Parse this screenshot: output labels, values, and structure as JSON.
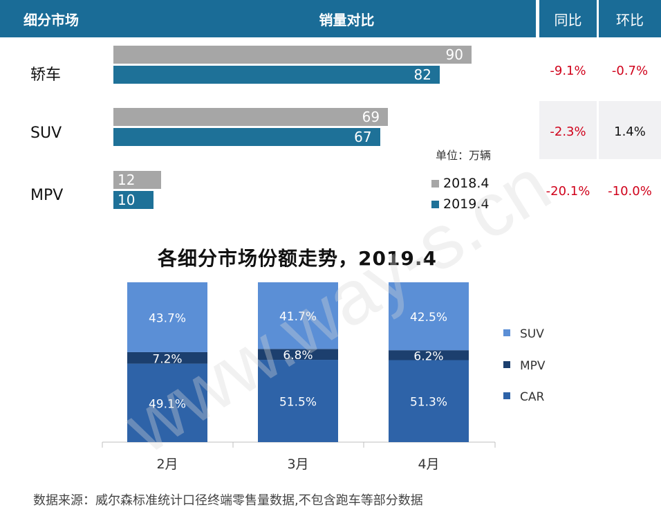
{
  "header": {
    "segment": "细分市场",
    "sales_compare": "销量对比",
    "yoy": "同比",
    "mom": "环比"
  },
  "sales": {
    "unit": "单位：万辆",
    "legend": [
      "2018.4",
      "2019.4"
    ],
    "rows": [
      {
        "label": "轿车",
        "v2018": 90,
        "v2019": 82,
        "yoy": "-9.1%",
        "mom": "-0.7%"
      },
      {
        "label": "SUV",
        "v2018": 69,
        "v2019": 67,
        "yoy": "-2.3%",
        "mom": "1.4%"
      },
      {
        "label": "MPV",
        "v2018": 12,
        "v2019": 10,
        "yoy": "-20.1%",
        "mom": "-10.0%"
      }
    ],
    "max": 90
  },
  "colors": {
    "header": "#1a6c97",
    "bar2018": "#a6a6a6",
    "bar2019": "#1e7198",
    "negative": "#d0021b",
    "positive": "#111111",
    "suv": "#5b8fd6",
    "mpv": "#1c3f6e",
    "car": "#2e63a8"
  },
  "chart_data": {
    "type": "bar",
    "stacked": true,
    "title": "各细分市场份额走势，2019.4",
    "categories": [
      "2月",
      "3月",
      "4月"
    ],
    "series": [
      {
        "name": "CAR",
        "values": [
          49.1,
          51.5,
          51.3
        ],
        "labels": [
          "49.1%",
          "51.5%",
          "51.3%"
        ]
      },
      {
        "name": "MPV",
        "values": [
          7.2,
          6.8,
          6.2
        ],
        "labels": [
          "7.2%",
          "6.8%",
          "6.2%"
        ]
      },
      {
        "name": "SUV",
        "values": [
          43.7,
          41.7,
          42.5
        ],
        "labels": [
          "43.7%",
          "41.7%",
          "42.5%"
        ]
      }
    ],
    "legend": [
      "SUV",
      "MPV",
      "CAR"
    ],
    "ylim": [
      0,
      100
    ]
  },
  "footer": {
    "source": "数据来源：威尔森标准统计口径终端零售量数据,不包含跑车等部分数据"
  },
  "watermark": "www.way-s.cn"
}
